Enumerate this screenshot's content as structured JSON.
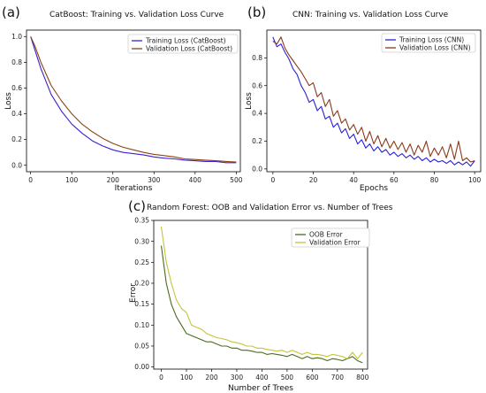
{
  "chart_data": [
    {
      "panel_label": "(a)",
      "type": "line",
      "title": "CatBoost: Training vs. Validation Loss Curve",
      "xlabel": "Iterations",
      "ylabel": "Loss",
      "xlim": [
        -10,
        510
      ],
      "ylim": [
        -0.05,
        1.05
      ],
      "xticks": [
        0,
        100,
        200,
        300,
        400,
        500
      ],
      "yticks": [
        0.0,
        0.2,
        0.4,
        0.6,
        0.8,
        1.0
      ],
      "xtick_labels": [
        "0",
        "100",
        "200",
        "300",
        "400",
        "500"
      ],
      "ytick_labels": [
        "0.0",
        "0.2",
        "0.4",
        "0.6",
        "0.8",
        "1.0"
      ],
      "grid": false,
      "legend_position": "top-right",
      "series": [
        {
          "name": "Training Loss (CatBoost)",
          "color": "#3b1fd6",
          "x": [
            0,
            10,
            25,
            50,
            75,
            100,
            125,
            150,
            175,
            200,
            225,
            250,
            275,
            300,
            325,
            350,
            375,
            400,
            425,
            450,
            475,
            500
          ],
          "y": [
            1.0,
            0.9,
            0.75,
            0.55,
            0.42,
            0.32,
            0.25,
            0.19,
            0.15,
            0.12,
            0.1,
            0.09,
            0.08,
            0.065,
            0.055,
            0.05,
            0.04,
            0.035,
            0.03,
            0.03,
            0.02,
            0.02
          ]
        },
        {
          "name": "Validation Loss (CatBoost)",
          "color": "#8b4513",
          "x": [
            0,
            10,
            25,
            50,
            75,
            100,
            125,
            150,
            175,
            200,
            225,
            250,
            275,
            300,
            325,
            350,
            375,
            400,
            425,
            450,
            475,
            500
          ],
          "y": [
            1.0,
            0.93,
            0.8,
            0.62,
            0.5,
            0.4,
            0.32,
            0.26,
            0.21,
            0.17,
            0.14,
            0.12,
            0.1,
            0.085,
            0.075,
            0.065,
            0.05,
            0.045,
            0.04,
            0.035,
            0.03,
            0.025
          ]
        }
      ]
    },
    {
      "panel_label": "(b)",
      "type": "line",
      "title": "CNN: Training vs. Validation Loss Curve",
      "xlabel": "Epochs",
      "ylabel": "Loss",
      "xlim": [
        -3,
        103
      ],
      "ylim": [
        -0.02,
        1.0
      ],
      "xticks": [
        0,
        20,
        40,
        60,
        80,
        100
      ],
      "yticks": [
        0.0,
        0.2,
        0.4,
        0.6,
        0.8
      ],
      "xtick_labels": [
        "0",
        "20",
        "40",
        "60",
        "80",
        "100"
      ],
      "ytick_labels": [
        "0.0",
        "0.2",
        "0.4",
        "0.6",
        "0.8"
      ],
      "grid": false,
      "legend_position": "top-right",
      "series": [
        {
          "name": "Training Loss (CNN)",
          "color": "#2a1fd6",
          "x": [
            0,
            2,
            4,
            6,
            8,
            10,
            12,
            14,
            16,
            18,
            20,
            22,
            24,
            26,
            28,
            30,
            32,
            34,
            36,
            38,
            40,
            42,
            44,
            46,
            48,
            50,
            52,
            54,
            56,
            58,
            60,
            62,
            64,
            66,
            68,
            70,
            72,
            74,
            76,
            78,
            80,
            82,
            84,
            86,
            88,
            90,
            92,
            94,
            96,
            98,
            100
          ],
          "y": [
            0.95,
            0.88,
            0.9,
            0.84,
            0.79,
            0.72,
            0.68,
            0.6,
            0.55,
            0.48,
            0.5,
            0.42,
            0.45,
            0.36,
            0.38,
            0.3,
            0.33,
            0.26,
            0.29,
            0.22,
            0.25,
            0.18,
            0.21,
            0.15,
            0.18,
            0.13,
            0.16,
            0.12,
            0.14,
            0.1,
            0.12,
            0.09,
            0.11,
            0.08,
            0.1,
            0.07,
            0.09,
            0.06,
            0.08,
            0.05,
            0.07,
            0.05,
            0.06,
            0.04,
            0.06,
            0.03,
            0.05,
            0.03,
            0.05,
            0.02,
            0.06
          ]
        },
        {
          "name": "Validation Loss (CNN)",
          "color": "#8b3a1a",
          "x": [
            0,
            2,
            4,
            6,
            8,
            10,
            12,
            14,
            16,
            18,
            20,
            22,
            24,
            26,
            28,
            30,
            32,
            34,
            36,
            38,
            40,
            42,
            44,
            46,
            48,
            50,
            52,
            54,
            56,
            58,
            60,
            62,
            64,
            66,
            68,
            70,
            72,
            74,
            76,
            78,
            80,
            82,
            84,
            86,
            88,
            90,
            92,
            94,
            96,
            98,
            100
          ],
          "y": [
            0.92,
            0.9,
            0.95,
            0.87,
            0.82,
            0.78,
            0.74,
            0.7,
            0.65,
            0.6,
            0.62,
            0.52,
            0.55,
            0.45,
            0.5,
            0.38,
            0.42,
            0.33,
            0.36,
            0.28,
            0.32,
            0.25,
            0.3,
            0.2,
            0.27,
            0.18,
            0.24,
            0.16,
            0.22,
            0.15,
            0.2,
            0.14,
            0.19,
            0.12,
            0.18,
            0.1,
            0.17,
            0.12,
            0.2,
            0.09,
            0.15,
            0.1,
            0.16,
            0.08,
            0.18,
            0.07,
            0.2,
            0.06,
            0.08,
            0.05,
            0.06
          ]
        }
      ]
    },
    {
      "panel_label": "(c)",
      "type": "line",
      "title": "Random Forest: OOB and Validation Error vs. Number of Trees",
      "xlabel": "Number of Trees",
      "ylabel": "Error",
      "xlim": [
        -30,
        820
      ],
      "ylim": [
        -0.005,
        0.35
      ],
      "xticks": [
        0,
        100,
        200,
        300,
        400,
        500,
        600,
        700,
        800
      ],
      "yticks": [
        0.0,
        0.05,
        0.1,
        0.15,
        0.2,
        0.25,
        0.3,
        0.35
      ],
      "xtick_labels": [
        "0",
        "100",
        "200",
        "300",
        "400",
        "500",
        "600",
        "700",
        "800"
      ],
      "ytick_labels": [
        "0.00",
        "0.05",
        "0.10",
        "0.15",
        "0.20",
        "0.25",
        "0.30",
        "0.35"
      ],
      "grid": false,
      "legend_position": "top-right",
      "series": [
        {
          "name": "OOB Error",
          "color": "#4a6b1f",
          "x": [
            0,
            20,
            40,
            60,
            80,
            100,
            120,
            140,
            160,
            180,
            200,
            220,
            240,
            260,
            280,
            300,
            320,
            340,
            360,
            380,
            400,
            420,
            440,
            460,
            480,
            500,
            520,
            540,
            560,
            580,
            600,
            620,
            640,
            660,
            680,
            700,
            720,
            740,
            760,
            780,
            800
          ],
          "y": [
            0.29,
            0.2,
            0.15,
            0.12,
            0.1,
            0.08,
            0.075,
            0.07,
            0.065,
            0.06,
            0.06,
            0.055,
            0.05,
            0.05,
            0.045,
            0.045,
            0.04,
            0.04,
            0.038,
            0.035,
            0.035,
            0.03,
            0.032,
            0.03,
            0.028,
            0.025,
            0.03,
            0.025,
            0.02,
            0.025,
            0.02,
            0.022,
            0.02,
            0.015,
            0.02,
            0.018,
            0.015,
            0.02,
            0.025,
            0.015,
            0.01
          ]
        },
        {
          "name": "Validation Error",
          "color": "#c4c43a",
          "x": [
            0,
            20,
            40,
            60,
            80,
            100,
            120,
            140,
            160,
            180,
            200,
            220,
            240,
            260,
            280,
            300,
            320,
            340,
            360,
            380,
            400,
            420,
            440,
            460,
            480,
            500,
            520,
            540,
            560,
            580,
            600,
            620,
            640,
            660,
            680,
            700,
            720,
            740,
            760,
            780,
            800
          ],
          "y": [
            0.335,
            0.25,
            0.2,
            0.16,
            0.14,
            0.13,
            0.1,
            0.095,
            0.09,
            0.08,
            0.075,
            0.07,
            0.068,
            0.065,
            0.06,
            0.058,
            0.055,
            0.05,
            0.05,
            0.045,
            0.045,
            0.042,
            0.04,
            0.038,
            0.04,
            0.035,
            0.04,
            0.035,
            0.03,
            0.035,
            0.03,
            0.03,
            0.028,
            0.025,
            0.03,
            0.028,
            0.025,
            0.02,
            0.035,
            0.02,
            0.035
          ]
        }
      ]
    }
  ]
}
